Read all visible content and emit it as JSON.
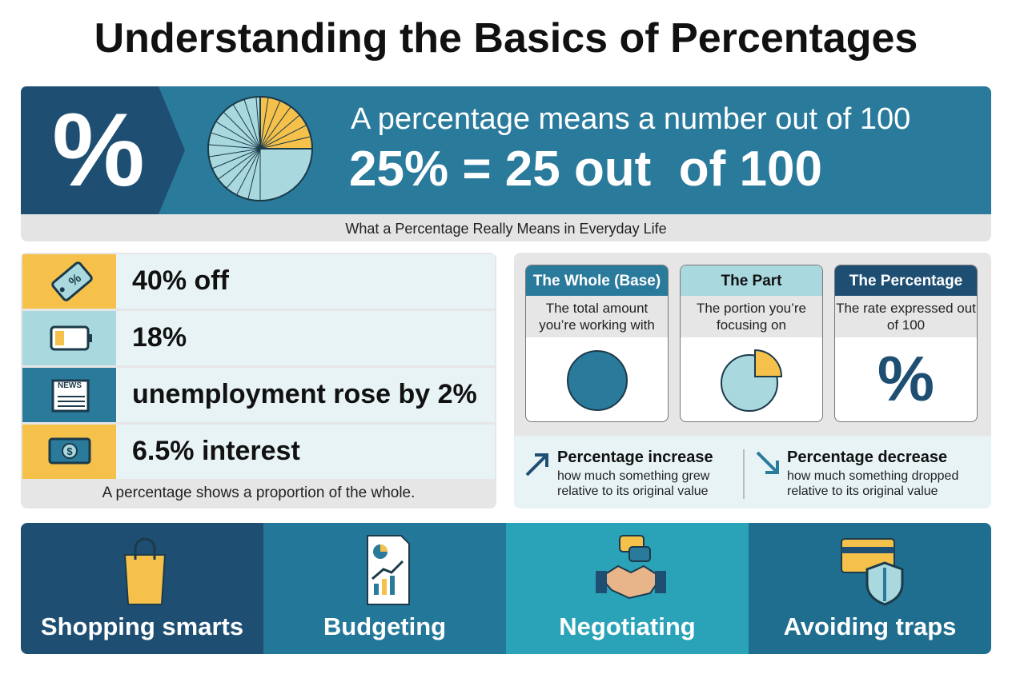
{
  "title": "Understanding the Basics of Percentages",
  "banner": {
    "symbol": "%",
    "line1": "A percentage means a number out of 100",
    "line2": "25% = 25 out  of 100",
    "caption": "What a Percentage Really Means in Everyday Life"
  },
  "examples": {
    "items": [
      "40% off",
      "18%",
      "unemployment rose by 2%",
      "6.5% interest"
    ],
    "news_label": "NEWS",
    "footer": "A percentage shows a proportion of the whole."
  },
  "concepts": {
    "cards": [
      {
        "heading": "The Whole (Base)",
        "text": "The total amount you’re working with"
      },
      {
        "heading": "The Part",
        "text": "The portion you’re focusing on"
      },
      {
        "heading": "The Percentage",
        "text": "The rate expressed out of 100",
        "symbol": "%"
      }
    ],
    "changes": [
      {
        "heading": "Percentage increase",
        "text": "how much something grew relative to its original value"
      },
      {
        "heading": "Percentage decrease",
        "text": "how much something dropped relative to its original value"
      }
    ]
  },
  "uses": [
    "Shopping smarts",
    "Budgeting",
    "Negotiating",
    "Avoiding traps"
  ]
}
